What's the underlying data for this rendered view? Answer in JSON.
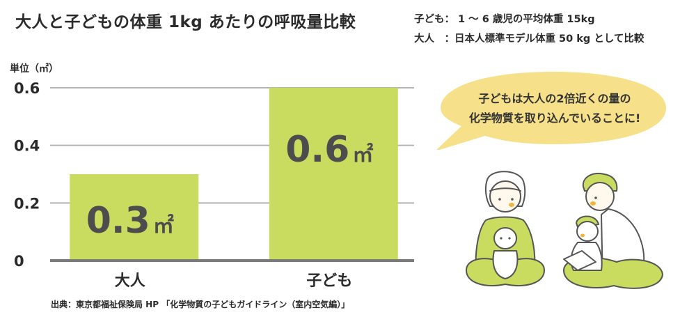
{
  "title": "大人と子どもの体重 1kg あたりの呼吸量比較",
  "notes": {
    "child": "子ども： 1 〜 6 歳児の平均体重 15kg",
    "adult": "大人　：日本人標準モデル体重 50 kg として比較"
  },
  "callout": {
    "line1": "子どもは大人の2倍近くの量の",
    "line2": "化学物質を取り込んでいることに!"
  },
  "source": "出典：東京都福祉保険局 HP 「化学物質の子どもガイドライン（室内空気編）」",
  "colors": {
    "bar": "#c9dc5f",
    "label": "#4d4d4d",
    "grid": "#b4b4b4",
    "axis": "#7a7a7a",
    "bubble": "#f6e08a",
    "shirt": "#c9dc5f",
    "skin": "#fff8ec",
    "outline": "#555555",
    "cheek": "#f2b43a"
  },
  "chart_data": {
    "type": "bar",
    "title": "大人と子どもの体重 1kg あたりの呼吸量比較",
    "ylabel": "単位（㎡）",
    "xlabel": "",
    "categories": [
      "大人",
      "子ども"
    ],
    "values": [
      0.3,
      0.6
    ],
    "value_labels": [
      "0.3",
      "0.6"
    ],
    "unit_label": "㎡",
    "ylim": [
      0,
      0.6
    ],
    "yticks": [
      0,
      0.2,
      0.4,
      0.6
    ],
    "ytick_labels": [
      "0",
      "0.2",
      "0.4",
      "0.6"
    ],
    "grid": true,
    "legend": "none"
  }
}
